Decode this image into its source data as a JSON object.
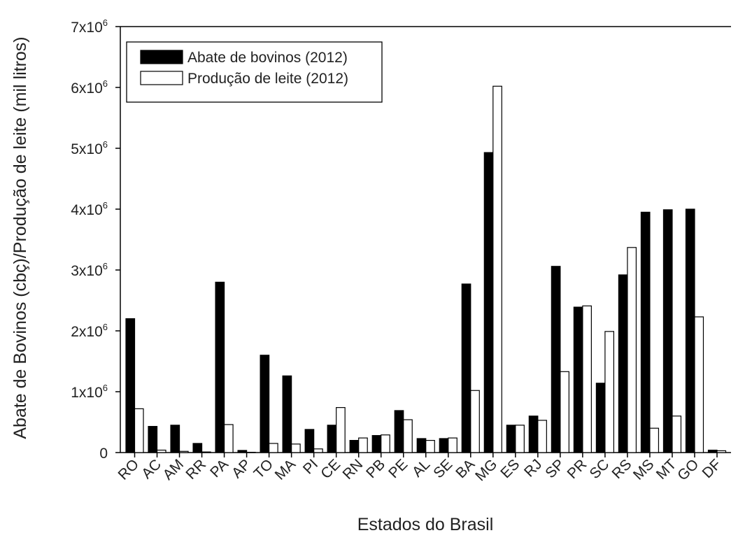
{
  "chart_data": {
    "type": "bar",
    "xlabel": "Estados do Brasil",
    "ylabel": "Abate de Bovinos (cbç)/Produção de leite (mil litros)",
    "ylim": [
      0,
      7000000
    ],
    "yticks": [
      {
        "value": 0,
        "base": "0",
        "exp": ""
      },
      {
        "value": 1000000,
        "base": "1x10",
        "exp": "6"
      },
      {
        "value": 2000000,
        "base": "2x10",
        "exp": "6"
      },
      {
        "value": 3000000,
        "base": "3x10",
        "exp": "6"
      },
      {
        "value": 4000000,
        "base": "4x10",
        "exp": "6"
      },
      {
        "value": 5000000,
        "base": "5x10",
        "exp": "6"
      },
      {
        "value": 6000000,
        "base": "6x10",
        "exp": "6"
      },
      {
        "value": 7000000,
        "base": "7x10",
        "exp": "6"
      }
    ],
    "categories": [
      "RO",
      "AC",
      "AM",
      "RR",
      "PA",
      "AP",
      "TO",
      "MA",
      "PI",
      "CE",
      "RN",
      "PB",
      "PE",
      "AL",
      "SE",
      "BA",
      "MG",
      "ES",
      "RJ",
      "SP",
      "PR",
      "SC",
      "RS",
      "MS",
      "MT",
      "GO",
      "DF"
    ],
    "series": [
      {
        "name": "Abate de bovinos (2012)",
        "color": "#000000",
        "values": [
          2200000,
          430000,
          450000,
          150000,
          2800000,
          35000,
          1600000,
          1260000,
          380000,
          450000,
          200000,
          280000,
          690000,
          230000,
          230000,
          2770000,
          4930000,
          450000,
          600000,
          3060000,
          2390000,
          1140000,
          2920000,
          3950000,
          3990000,
          4000000,
          40000
        ]
      },
      {
        "name": "Produção de leite (2012)",
        "color": "#ffffff",
        "values": [
          720000,
          40000,
          20000,
          10000,
          460000,
          5000,
          150000,
          140000,
          60000,
          740000,
          240000,
          290000,
          540000,
          200000,
          240000,
          1020000,
          6020000,
          450000,
          530000,
          1330000,
          2410000,
          1990000,
          3370000,
          400000,
          600000,
          2230000,
          30000
        ]
      }
    ],
    "legend": {
      "position": "top-left"
    },
    "grid": false
  }
}
